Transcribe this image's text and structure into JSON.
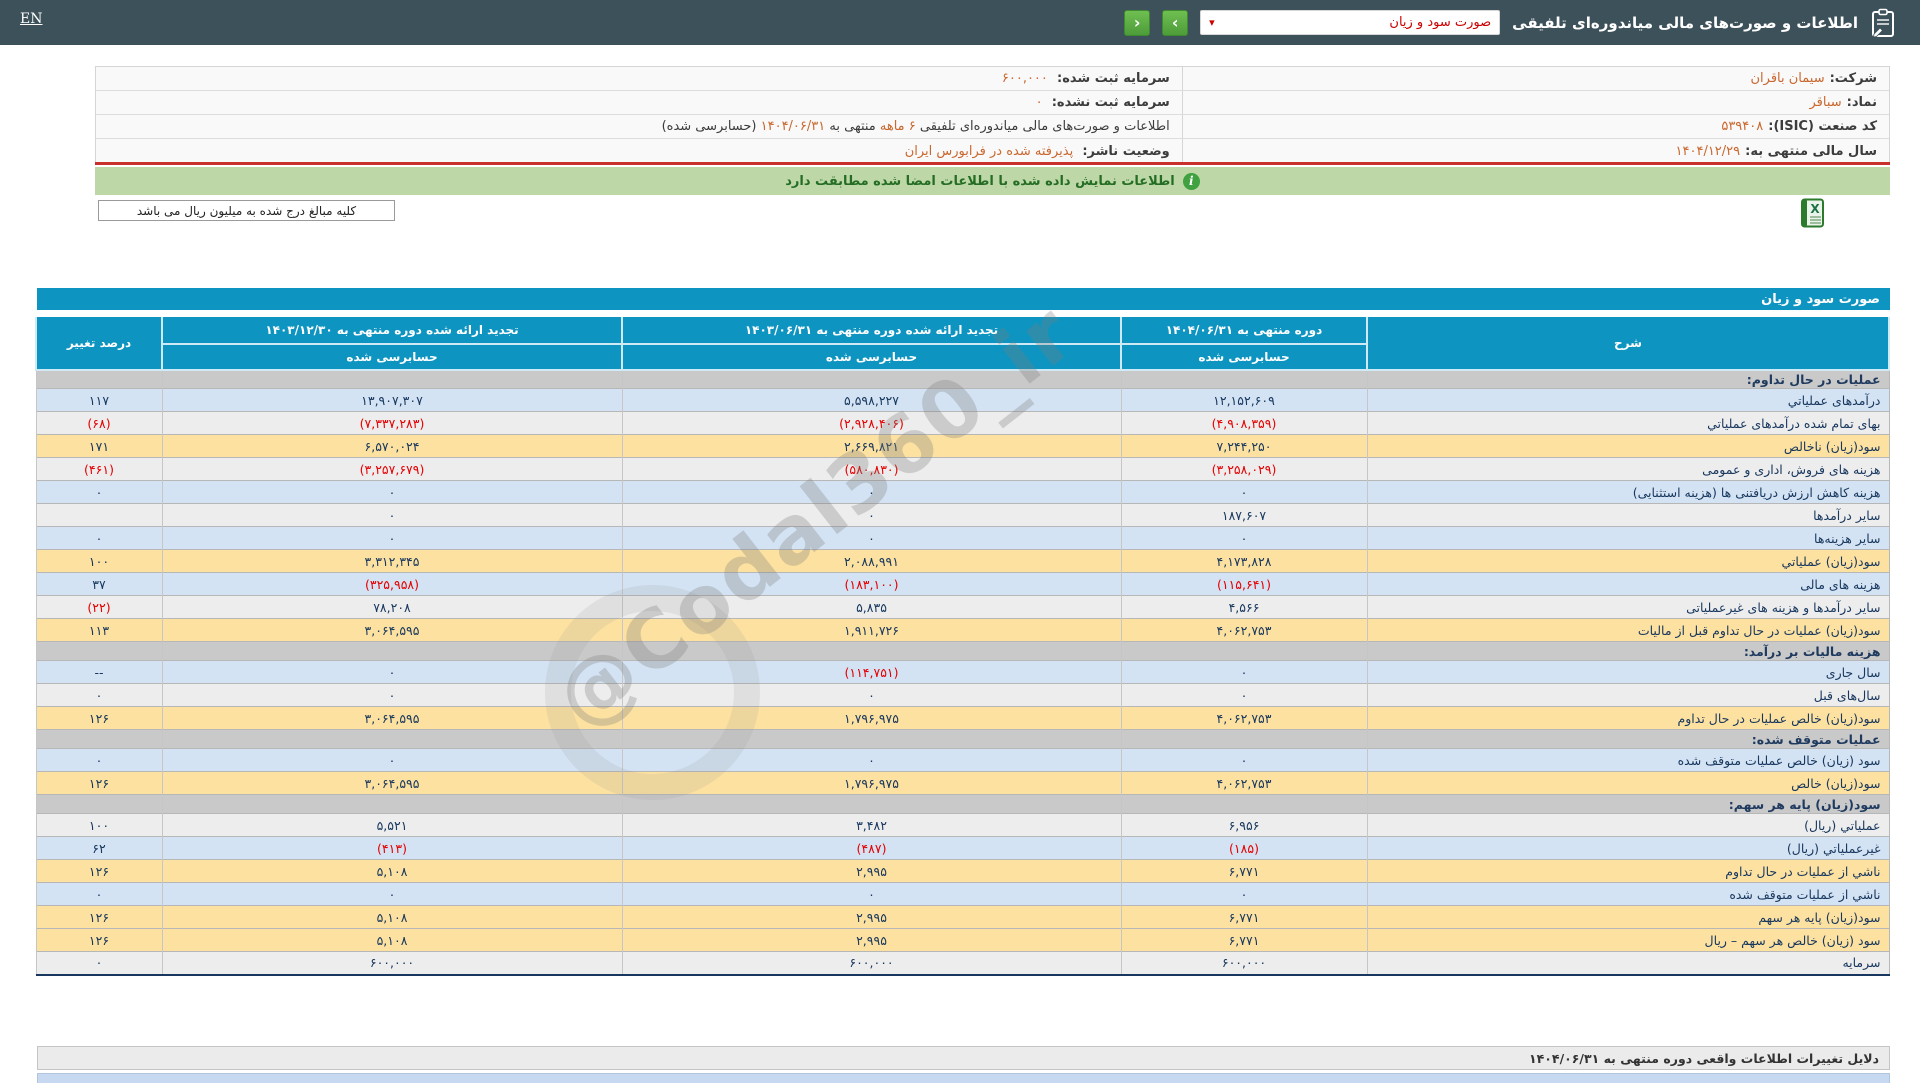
{
  "header": {
    "lang": "EN",
    "title": "اطلاعات و صورت‌های مالی میاندوره‌ای تلفیقی",
    "dropdown_value": "صورت سود و زیان"
  },
  "icons": {
    "dropdown_caret": "▾",
    "next": "›",
    "prev": "‹",
    "info": "i"
  },
  "company_info": {
    "company_label": "شرکت:",
    "company_value": "سیمان باقران",
    "symbol_label": "نماد:",
    "symbol_value": "سباقر",
    "isic_label": "کد صنعت (ISIC):",
    "isic_value": "۵۳۹۴۰۸",
    "fiscal_label": "سال مالی منتهی به:",
    "fiscal_value": "۱۴۰۴/۱۲/۲۹",
    "capital_reg_label": "سرمایه ثبت شده:",
    "capital_reg_value": "۶۰۰,۰۰۰",
    "capital_unreg_label": "سرمایه ثبت نشده:",
    "capital_unreg_value": "۰",
    "statement_p1": "اطلاعات و صورت‌های مالی میاندوره‌ای تلفیقی ",
    "statement_p2": "۶ ماهه",
    "statement_p3": " منتهی به",
    "statement_p4": "۱۴۰۴/۰۶/۳۱",
    "statement_p5": "(حسابرسی شده)",
    "status_label": "وضعیت ناشر:",
    "status_value": "پذیرفته شده در فرابورس ایران"
  },
  "verification_bar": {
    "text": "اطلاعات نمایش داده شده با اطلاعات امضا شده مطابقت دارد"
  },
  "note_box": {
    "text": "کلیه مبالغ درج شده به میلیون ریال می باشد"
  },
  "watermark": "@Codal360_ir",
  "pl_table": {
    "title": "صورت سود و زیان",
    "col_desc": "شرح",
    "col_current": "دوره منتهی به ۱۴۰۴/۰۶/۳۱",
    "col_restated_0603": "تجدید ارائه شده دوره منتهی به ۱۴۰۳/۰۶/۳۱",
    "col_restated_0312": "تجدید ارائه شده دوره منتهی به ۱۴۰۳/۱۲/۳۰",
    "col_pct": "درصد تغییر",
    "audited_label": "حسابرسی شده",
    "rows": [
      {
        "type": "section",
        "desc": "عملیات در حال تداوم:",
        "v1404": "",
        "v1403_06": "",
        "v1403_12": "",
        "pct": ""
      },
      {
        "type": "blue",
        "desc": "درآمدهای عملیاتي",
        "v1404": "۱۲,۱۵۲,۶۰۹",
        "v1403_06": "۵,۵۹۸,۲۲۷",
        "v1403_12": "۱۳,۹۰۷,۳۰۷",
        "pct": "۱۱۷"
      },
      {
        "type": "gray",
        "desc": "بهای تمام شده درآمدهای عملیاتي",
        "v1404": "(۴,۹۰۸,۳۵۹)",
        "v1403_06": "(۲,۹۲۸,۴۰۶)",
        "v1403_12": "(۷,۳۳۷,۲۸۳)",
        "pct": "(۶۸)"
      },
      {
        "type": "yellow",
        "desc": "سود(زیان) ناخالص",
        "v1404": "۷,۲۴۴,۲۵۰",
        "v1403_06": "۲,۶۶۹,۸۲۱",
        "v1403_12": "۶,۵۷۰,۰۲۴",
        "pct": "۱۷۱"
      },
      {
        "type": "gray",
        "desc": "هزینه های فروش، اداری و عمومی",
        "v1404": "(۳,۲۵۸,۰۲۹)",
        "v1403_06": "(۵۸۰,۸۳۰)",
        "v1403_12": "(۳,۲۵۷,۶۷۹)",
        "pct": "(۴۶۱)"
      },
      {
        "type": "blue",
        "desc": "هزینه کاهش ارزش دریافتنی ها (هزینه استثنایی)",
        "v1404": "۰",
        "v1403_06": "۰",
        "v1403_12": "۰",
        "pct": "۰"
      },
      {
        "type": "gray",
        "desc": "سایر درآمدها",
        "v1404": "۱۸۷,۶۰۷",
        "v1403_06": "۰",
        "v1403_12": "۰",
        "pct": ""
      },
      {
        "type": "blue",
        "desc": "سایر هزینه‌ها",
        "v1404": "۰",
        "v1403_06": "۰",
        "v1403_12": "۰",
        "pct": "۰"
      },
      {
        "type": "yellow",
        "desc": "سود(زیان) عملیاتي",
        "v1404": "۴,۱۷۳,۸۲۸",
        "v1403_06": "۲,۰۸۸,۹۹۱",
        "v1403_12": "۳,۳۱۲,۳۴۵",
        "pct": "۱۰۰"
      },
      {
        "type": "blue",
        "desc": "هزینه های مالی",
        "v1404": "(۱۱۵,۶۴۱)",
        "v1403_06": "(۱۸۳,۱۰۰)",
        "v1403_12": "(۳۲۵,۹۵۸)",
        "pct": "۳۷"
      },
      {
        "type": "gray",
        "desc": "سایر درآمدها و هزینه های غیرعملیاتی",
        "v1404": "۴,۵۶۶",
        "v1403_06": "۵,۸۳۵",
        "v1403_12": "۷۸,۲۰۸",
        "pct": "(۲۲)"
      },
      {
        "type": "yellow",
        "desc": "سود(زیان) عملیات در حال تداوم قبل از مالیات",
        "v1404": "۴,۰۶۲,۷۵۳",
        "v1403_06": "۱,۹۱۱,۷۲۶",
        "v1403_12": "۳,۰۶۴,۵۹۵",
        "pct": "۱۱۳"
      },
      {
        "type": "section",
        "desc": "هزینه مالیات بر درآمد:",
        "v1404": "",
        "v1403_06": "",
        "v1403_12": "",
        "pct": ""
      },
      {
        "type": "blue",
        "desc": "سال جاری",
        "v1404": "۰",
        "v1403_06": "(۱۱۴,۷۵۱)",
        "v1403_12": "۰",
        "pct": "--"
      },
      {
        "type": "gray",
        "desc": "سال‌های قبل",
        "v1404": "۰",
        "v1403_06": "۰",
        "v1403_12": "۰",
        "pct": "۰"
      },
      {
        "type": "yellow",
        "desc": "سود(زیان) خالص عملیات در حال تداوم",
        "v1404": "۴,۰۶۲,۷۵۳",
        "v1403_06": "۱,۷۹۶,۹۷۵",
        "v1403_12": "۳,۰۶۴,۵۹۵",
        "pct": "۱۲۶"
      },
      {
        "type": "section",
        "desc": "عملیات متوقف شده:",
        "v1404": "",
        "v1403_06": "",
        "v1403_12": "",
        "pct": ""
      },
      {
        "type": "blue",
        "desc": "سود (زیان) خالص عملیات متوقف شده",
        "v1404": "۰",
        "v1403_06": "۰",
        "v1403_12": "۰",
        "pct": "۰"
      },
      {
        "type": "yellow",
        "desc": "سود(زیان) خالص",
        "v1404": "۴,۰۶۲,۷۵۳",
        "v1403_06": "۱,۷۹۶,۹۷۵",
        "v1403_12": "۳,۰۶۴,۵۹۵",
        "pct": "۱۲۶"
      },
      {
        "type": "section",
        "desc": "سود(زیان) پایه هر سهم:",
        "v1404": "",
        "v1403_06": "",
        "v1403_12": "",
        "pct": ""
      },
      {
        "type": "gray",
        "desc": "عملیاتي (ریال)",
        "v1404": "۶,۹۵۶",
        "v1403_06": "۳,۴۸۲",
        "v1403_12": "۵,۵۲۱",
        "pct": "۱۰۰"
      },
      {
        "type": "blue",
        "desc": "غیرعملیاتي (ریال)",
        "v1404": "(۱۸۵)",
        "v1403_06": "(۴۸۷)",
        "v1403_12": "(۴۱۳)",
        "pct": "۶۲"
      },
      {
        "type": "yellow",
        "desc": "ناشي از عملیات در حال تداوم",
        "v1404": "۶,۷۷۱",
        "v1403_06": "۲,۹۹۵",
        "v1403_12": "۵,۱۰۸",
        "pct": "۱۲۶"
      },
      {
        "type": "blue",
        "desc": "ناشي از عملیات متوقف شده",
        "v1404": "۰",
        "v1403_06": "۰",
        "v1403_12": "۰",
        "pct": "۰"
      },
      {
        "type": "yellow",
        "desc": "سود(زیان) پایه هر سهم",
        "v1404": "۶,۷۷۱",
        "v1403_06": "۲,۹۹۵",
        "v1403_12": "۵,۱۰۸",
        "pct": "۱۲۶"
      },
      {
        "type": "yellow",
        "desc": "سود (زیان) خالص هر سهم – ریال",
        "v1404": "۶,۷۷۱",
        "v1403_06": "۲,۹۹۵",
        "v1403_12": "۵,۱۰۸",
        "pct": "۱۲۶"
      },
      {
        "type": "gray",
        "desc": "سرمایه",
        "v1404": "۶۰۰,۰۰۰",
        "v1403_06": "۶۰۰,۰۰۰",
        "v1403_12": "۶۰۰,۰۰۰",
        "pct": "۰"
      }
    ]
  },
  "footer": {
    "title": "دلایل تغییرات اطلاعات واقعی دوره منتهی به ۱۴۰۴/۰۶/۳۱"
  },
  "colors": {
    "topbar": "#3d515a",
    "table_header": "#0e94c1",
    "row_blue": "#d3e3f3",
    "row_gray": "#ededed",
    "row_subtotal_yellow": "#fde1a0",
    "row_section": "#c9c9c9",
    "value_navy": "#17375e",
    "value_negative_red": "#e60000",
    "info_value_orange": "#c9682f",
    "green_bar": "#bdd8a6",
    "red_rule": "#c9302c",
    "nav_button_green": "#4d9c3a"
  }
}
